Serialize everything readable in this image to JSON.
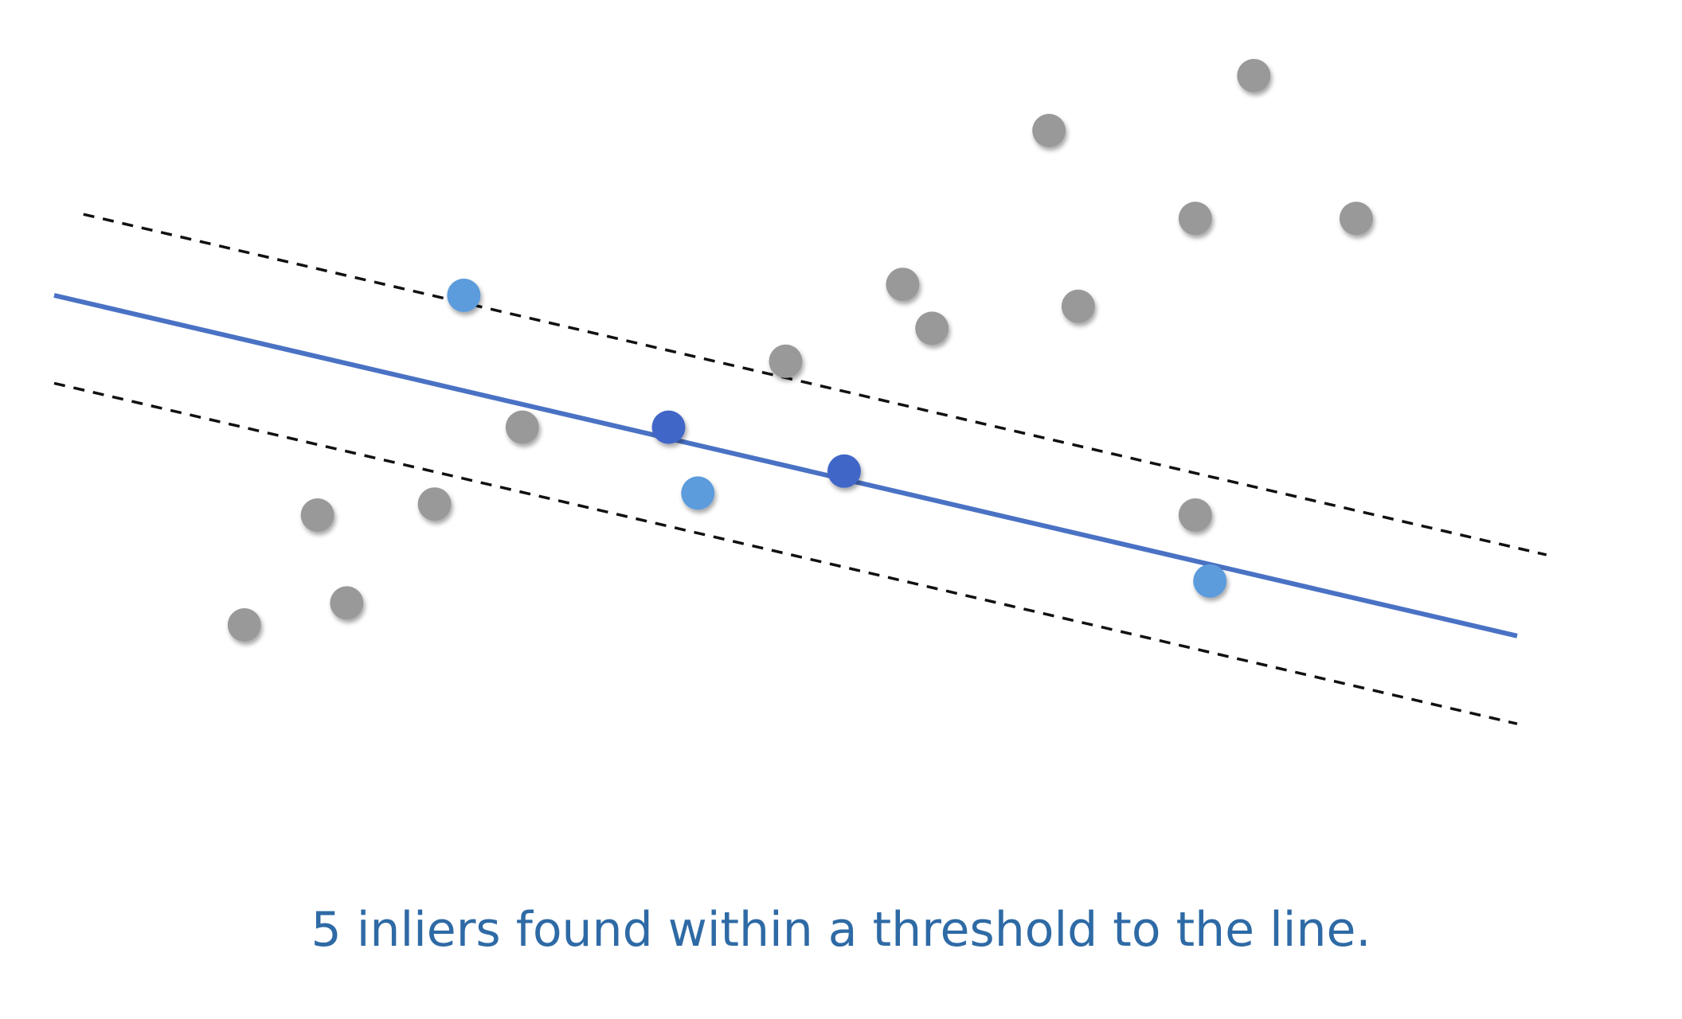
{
  "caption": "5 inliers found within a threshold to the line.",
  "colors": {
    "fit_line": "#4a72c4",
    "threshold_line": "#111111",
    "outlier": "#999999",
    "inlier": "#5b9bdc",
    "sample": "#3f66c8",
    "caption_text": "#2e6aa5"
  },
  "line_model": {
    "fit_line": {
      "from": [
        0,
        0
      ],
      "to": [
        1,
        -0.31
      ]
    },
    "upper_threshold": {
      "from": [
        0,
        0.08
      ],
      "to": [
        1,
        -0.23
      ]
    },
    "lower_threshold": {
      "from": [
        0,
        -0.08
      ],
      "to": [
        1,
        -0.39
      ]
    }
  },
  "points": [
    {
      "kind": "outlier",
      "x": 0.13,
      "y": -0.3
    },
    {
      "kind": "outlier",
      "x": 0.18,
      "y": -0.2
    },
    {
      "kind": "outlier",
      "x": 0.2,
      "y": -0.28
    },
    {
      "kind": "outlier",
      "x": 0.26,
      "y": -0.19
    },
    {
      "kind": "outlier",
      "x": 0.32,
      "y": -0.12
    },
    {
      "kind": "inlier",
      "x": 0.28,
      "y": 0.0
    },
    {
      "kind": "sample",
      "x": 0.42,
      "y": -0.12
    },
    {
      "kind": "inlier",
      "x": 0.44,
      "y": -0.18
    },
    {
      "kind": "outlier",
      "x": 0.5,
      "y": -0.06
    },
    {
      "kind": "sample",
      "x": 0.54,
      "y": -0.16
    },
    {
      "kind": "outlier",
      "x": 0.58,
      "y": 0.01
    },
    {
      "kind": "outlier",
      "x": 0.6,
      "y": -0.03
    },
    {
      "kind": "outlier",
      "x": 0.68,
      "y": 0.15
    },
    {
      "kind": "outlier",
      "x": 0.7,
      "y": -0.01
    },
    {
      "kind": "outlier",
      "x": 0.78,
      "y": 0.07
    },
    {
      "kind": "outlier",
      "x": 0.78,
      "y": -0.2
    },
    {
      "kind": "inlier",
      "x": 0.79,
      "y": -0.26
    },
    {
      "kind": "outlier",
      "x": 0.82,
      "y": 0.2
    },
    {
      "kind": "outlier",
      "x": 0.89,
      "y": 0.07
    }
  ]
}
